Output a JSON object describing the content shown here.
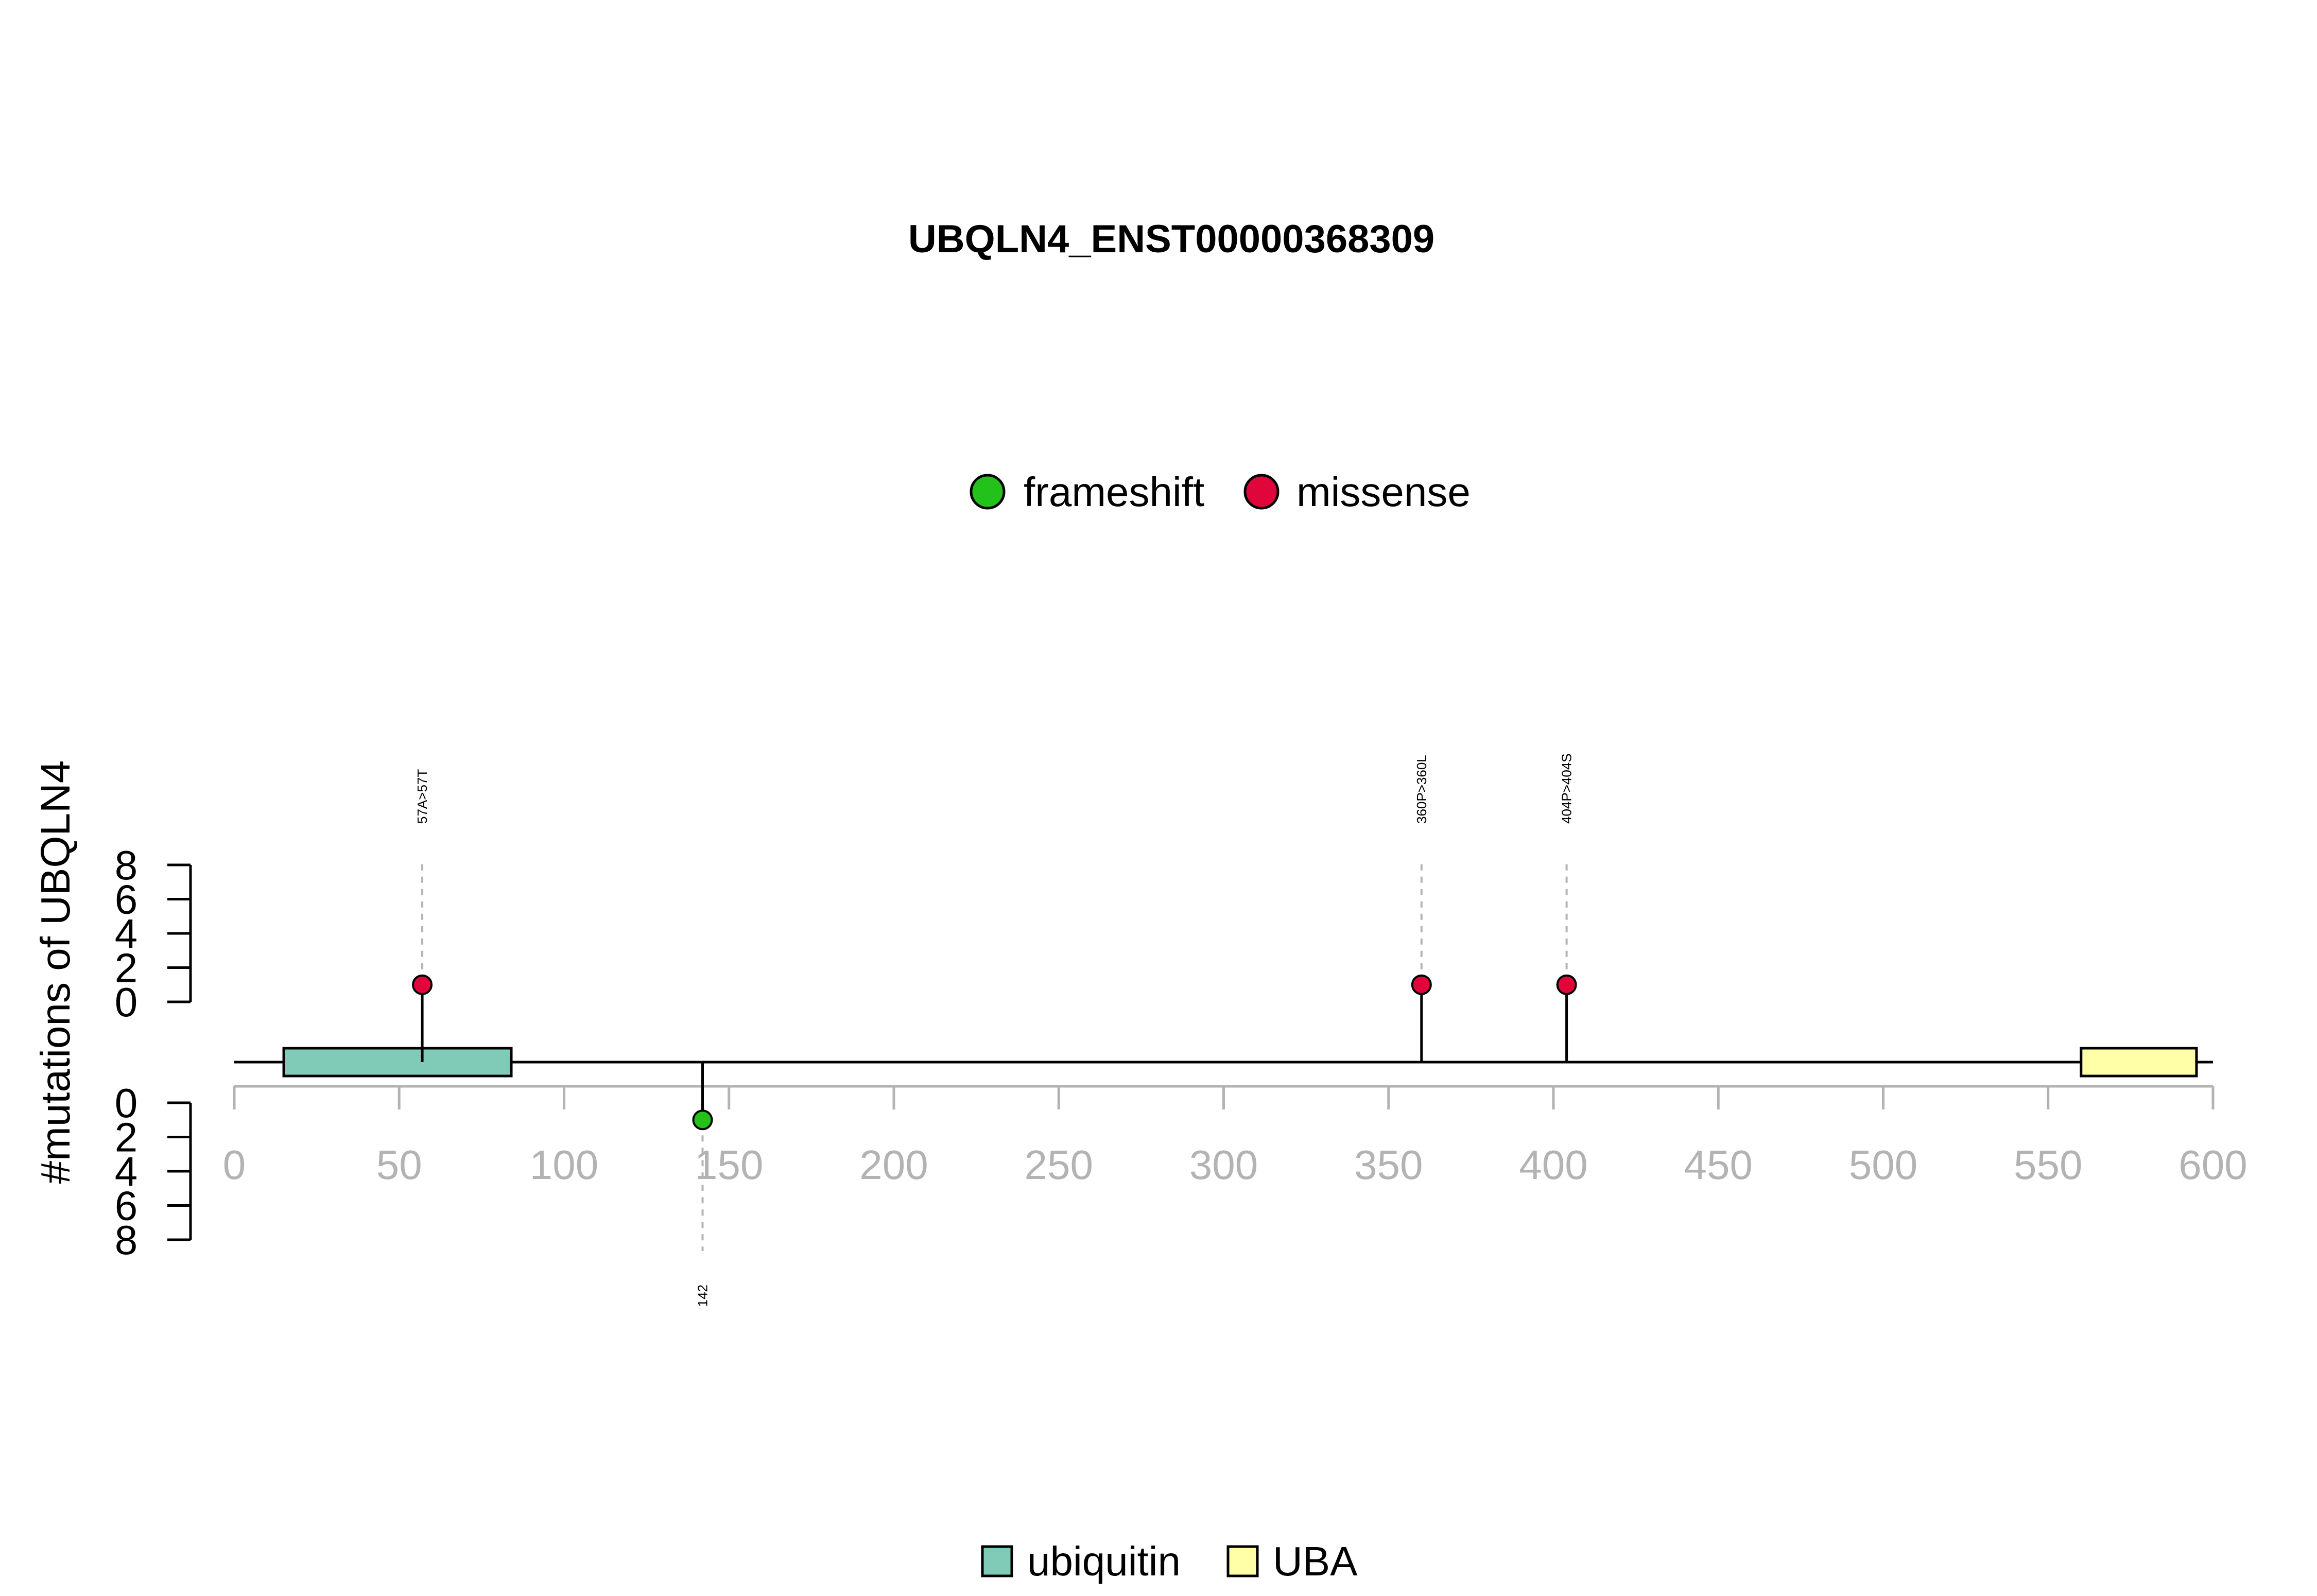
{
  "chart_data": {
    "type": "lollipop",
    "title": "UBQLN4_ENST00000368309",
    "ylabel": "#mutations of UBQLN4",
    "x_ticks": [
      0,
      50,
      100,
      150,
      200,
      250,
      300,
      350,
      400,
      450,
      500,
      550,
      600
    ],
    "xlim": [
      0,
      600
    ],
    "y_ticks": [
      0,
      2,
      4,
      6,
      8
    ],
    "ylim_upper": [
      0,
      8
    ],
    "ylim_lower": [
      0,
      8
    ],
    "mutation_legend": [
      {
        "name": "frameshift",
        "color": "#22c21a"
      },
      {
        "name": "missense",
        "color": "#e0063b"
      }
    ],
    "domain_legend": [
      {
        "name": "ubiquitin",
        "color": "#7fcbb7"
      },
      {
        "name": "UBA",
        "color": "#ffffa8"
      }
    ],
    "domains": [
      {
        "name": "ubiquitin",
        "start": 15,
        "end": 84,
        "color": "#7fcbb7"
      },
      {
        "name": "UBA",
        "start": 560,
        "end": 595,
        "color": "#ffffa8"
      }
    ],
    "mutations": [
      {
        "position": 57,
        "count": 1,
        "type": "missense",
        "label": "57A>57T",
        "side": "top"
      },
      {
        "position": 142,
        "count": 1,
        "type": "frameshift",
        "label": "142",
        "side": "bottom"
      },
      {
        "position": 360,
        "count": 1,
        "type": "missense",
        "label": "360P>360L",
        "side": "top"
      },
      {
        "position": 404,
        "count": 1,
        "type": "missense",
        "label": "404P>404S",
        "side": "top"
      }
    ]
  }
}
